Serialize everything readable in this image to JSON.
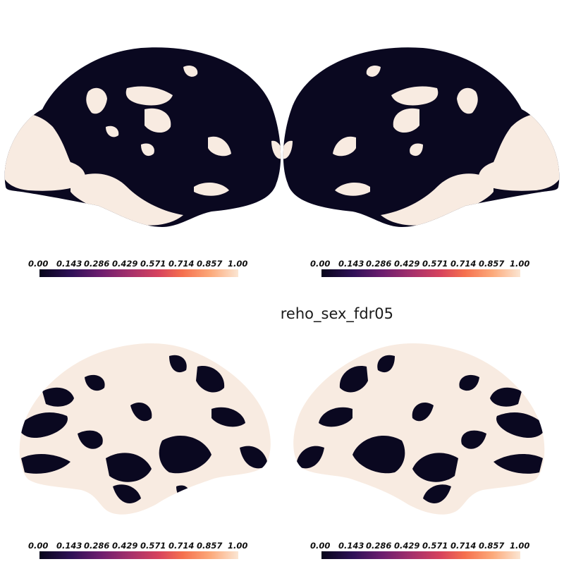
{
  "figure": {
    "title": "reho_sex_fdr05"
  },
  "colorbar": {
    "colormap": "rocket",
    "tick_labels": [
      "0.00",
      "0.143",
      "0.286",
      "0.429",
      "0.571",
      "0.714",
      "0.857",
      "1.00"
    ]
  },
  "colors": {
    "dark_region": "#0a0820",
    "light_region": "#f8ebe1",
    "background": "#ffffff"
  }
}
